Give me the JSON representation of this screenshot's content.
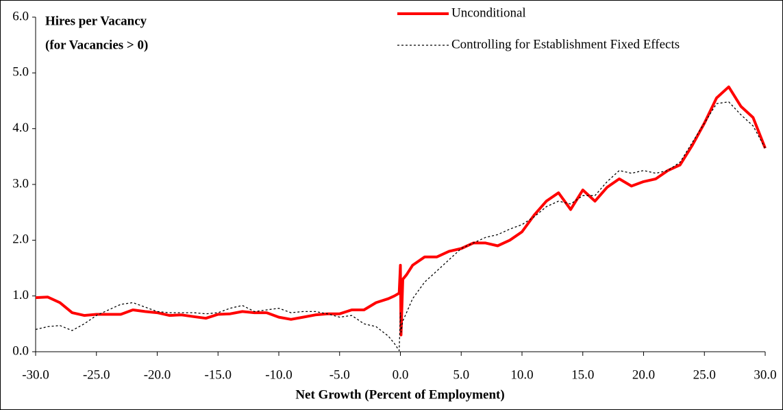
{
  "chart_data": {
    "type": "line",
    "title_lines": [
      "Hires per Vacancy",
      "(for Vacancies > 0)"
    ],
    "xlabel": "Net Growth (Percent of Employment)",
    "x": [
      -30,
      -29,
      -28,
      -27,
      -26,
      -25,
      -24,
      -23,
      -22,
      -21,
      -20,
      -19,
      -18,
      -17,
      -16,
      -15,
      -14,
      -13,
      -12,
      -11,
      -10,
      -9,
      -8,
      -7,
      -6,
      -5,
      -4,
      -3,
      -2,
      -1,
      -0.5,
      -0.1,
      0,
      0.05,
      0.2,
      0.5,
      1,
      2,
      3,
      4,
      5,
      6,
      7,
      8,
      9,
      10,
      11,
      12,
      13,
      14,
      15,
      16,
      17,
      18,
      19,
      20,
      21,
      22,
      23,
      24,
      25,
      26,
      27,
      28,
      29,
      30
    ],
    "series": [
      {
        "name": "Unconditional",
        "color": "#ff0000",
        "style": "solid",
        "values": [
          0.97,
          0.98,
          0.88,
          0.7,
          0.65,
          0.67,
          0.67,
          0.67,
          0.75,
          0.72,
          0.7,
          0.65,
          0.66,
          0.63,
          0.6,
          0.67,
          0.68,
          0.72,
          0.7,
          0.7,
          0.62,
          0.58,
          0.62,
          0.66,
          0.68,
          0.68,
          0.75,
          0.75,
          0.88,
          0.95,
          1.0,
          1.05,
          1.55,
          0.3,
          1.3,
          1.38,
          1.55,
          1.7,
          1.7,
          1.8,
          1.85,
          1.95,
          1.95,
          1.9,
          2.0,
          2.15,
          2.45,
          2.7,
          2.85,
          2.55,
          2.9,
          2.7,
          2.95,
          3.1,
          2.97,
          3.05,
          3.1,
          3.25,
          3.35,
          3.7,
          4.1,
          4.55,
          4.75,
          4.4,
          4.2,
          3.65
        ]
      },
      {
        "name": "Controlling for Establishment Fixed Effects",
        "color": "#000000",
        "style": "dotted",
        "values": [
          0.4,
          0.45,
          0.47,
          0.38,
          0.5,
          0.65,
          0.75,
          0.85,
          0.88,
          0.8,
          0.72,
          0.7,
          0.7,
          0.7,
          0.68,
          0.7,
          0.78,
          0.83,
          0.72,
          0.75,
          0.78,
          0.7,
          0.72,
          0.72,
          0.68,
          0.62,
          0.65,
          0.5,
          0.45,
          0.28,
          0.15,
          0.02,
          0.7,
          0.35,
          0.55,
          0.7,
          0.95,
          1.25,
          1.45,
          1.65,
          1.85,
          1.95,
          2.05,
          2.1,
          2.2,
          2.28,
          2.42,
          2.6,
          2.7,
          2.65,
          2.8,
          2.8,
          3.05,
          3.25,
          3.2,
          3.25,
          3.2,
          3.25,
          3.4,
          3.75,
          4.1,
          4.45,
          4.48,
          4.25,
          4.05,
          3.65
        ]
      }
    ],
    "xlim": [
      -30,
      30
    ],
    "xticks": [
      {
        "value": -30,
        "label": "-30.0"
      },
      {
        "value": -25,
        "label": "-25.0"
      },
      {
        "value": -20,
        "label": "-20.0"
      },
      {
        "value": -15,
        "label": "-15.0"
      },
      {
        "value": -10,
        "label": "-10.0"
      },
      {
        "value": -5,
        "label": "-5.0"
      },
      {
        "value": 0,
        "label": "0.0"
      },
      {
        "value": 5,
        "label": "5.0"
      },
      {
        "value": 10,
        "label": "10.0"
      },
      {
        "value": 15,
        "label": "15.0"
      },
      {
        "value": 20,
        "label": "20.0"
      },
      {
        "value": 25,
        "label": "25.0"
      },
      {
        "value": 30,
        "label": "30.0"
      }
    ],
    "ylim": [
      0,
      6
    ],
    "yticks": [
      {
        "value": 0,
        "label": "0.0"
      },
      {
        "value": 1,
        "label": "1.0"
      },
      {
        "value": 2,
        "label": "2.0"
      },
      {
        "value": 3,
        "label": "3.0"
      },
      {
        "value": 4,
        "label": "4.0"
      },
      {
        "value": 5,
        "label": "5.0"
      },
      {
        "value": 6,
        "label": "6.0"
      }
    ],
    "grid": false,
    "legend": "upper right"
  }
}
